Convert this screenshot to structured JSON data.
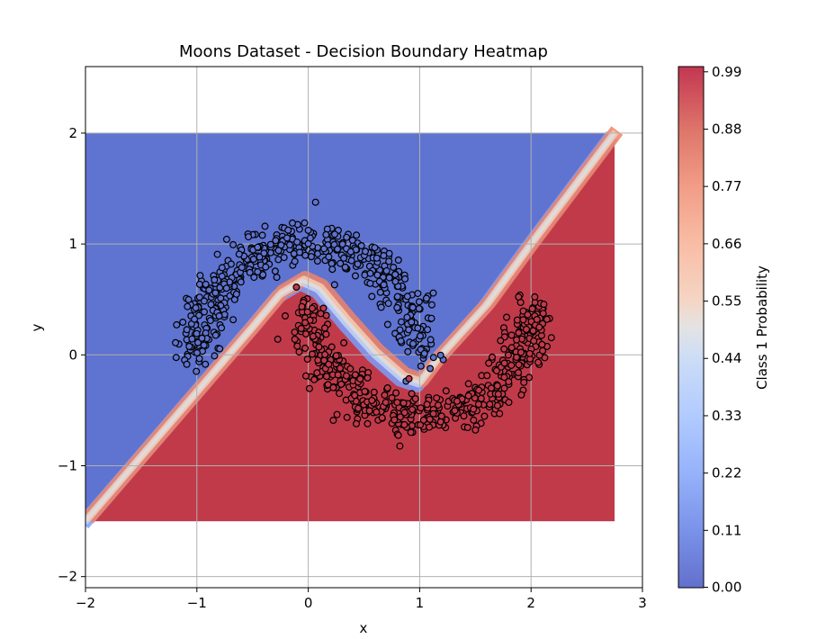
{
  "chart_data": {
    "type": "heatmap",
    "title": "Moons Dataset - Decision Boundary Heatmap",
    "xlabel": "x",
    "ylabel": "y",
    "xlim": [
      -2,
      3
    ],
    "ylim": [
      -2.1,
      2.6
    ],
    "grid": true,
    "xticks": [
      -2,
      -1,
      0,
      1,
      2,
      3
    ],
    "xtick_labels": [
      "−2",
      "−1",
      "0",
      "1",
      "2",
      "3"
    ],
    "yticks": [
      -2,
      -1,
      0,
      1,
      2
    ],
    "ytick_labels": [
      "−2",
      "−1",
      "0",
      "1",
      "2"
    ],
    "heatmap_extent": {
      "x": [
        -2,
        2.75
      ],
      "y": [
        -1.5,
        2.0
      ]
    },
    "colormap": {
      "name": "coolwarm",
      "low": "#5f73d0",
      "mid": "#dddddd",
      "high": "#c13a4a"
    },
    "colorbar": {
      "label": "Class 1 Probability",
      "range": [
        0,
        1
      ],
      "ticks": [
        0.0,
        0.11,
        0.22,
        0.33,
        0.44,
        0.55,
        0.66,
        0.77,
        0.88,
        0.99
      ],
      "tick_labels": [
        "0.00",
        "0.11",
        "0.22",
        "0.33",
        "0.44",
        "0.55",
        "0.66",
        "0.77",
        "0.88",
        "0.99"
      ]
    },
    "series": [
      {
        "class": 0,
        "color": "#5f73d0",
        "shape": "upper moon, center (0, 0), radius 1, x from -1.2 to 1.2",
        "n_points": 500
      },
      {
        "class": 1,
        "color": "#c13a4a",
        "shape": "lower moon, center (1, 0.5), radius 1, x from -0.2 to 2.2",
        "n_points": 500
      }
    ],
    "noise": 0.1
  }
}
